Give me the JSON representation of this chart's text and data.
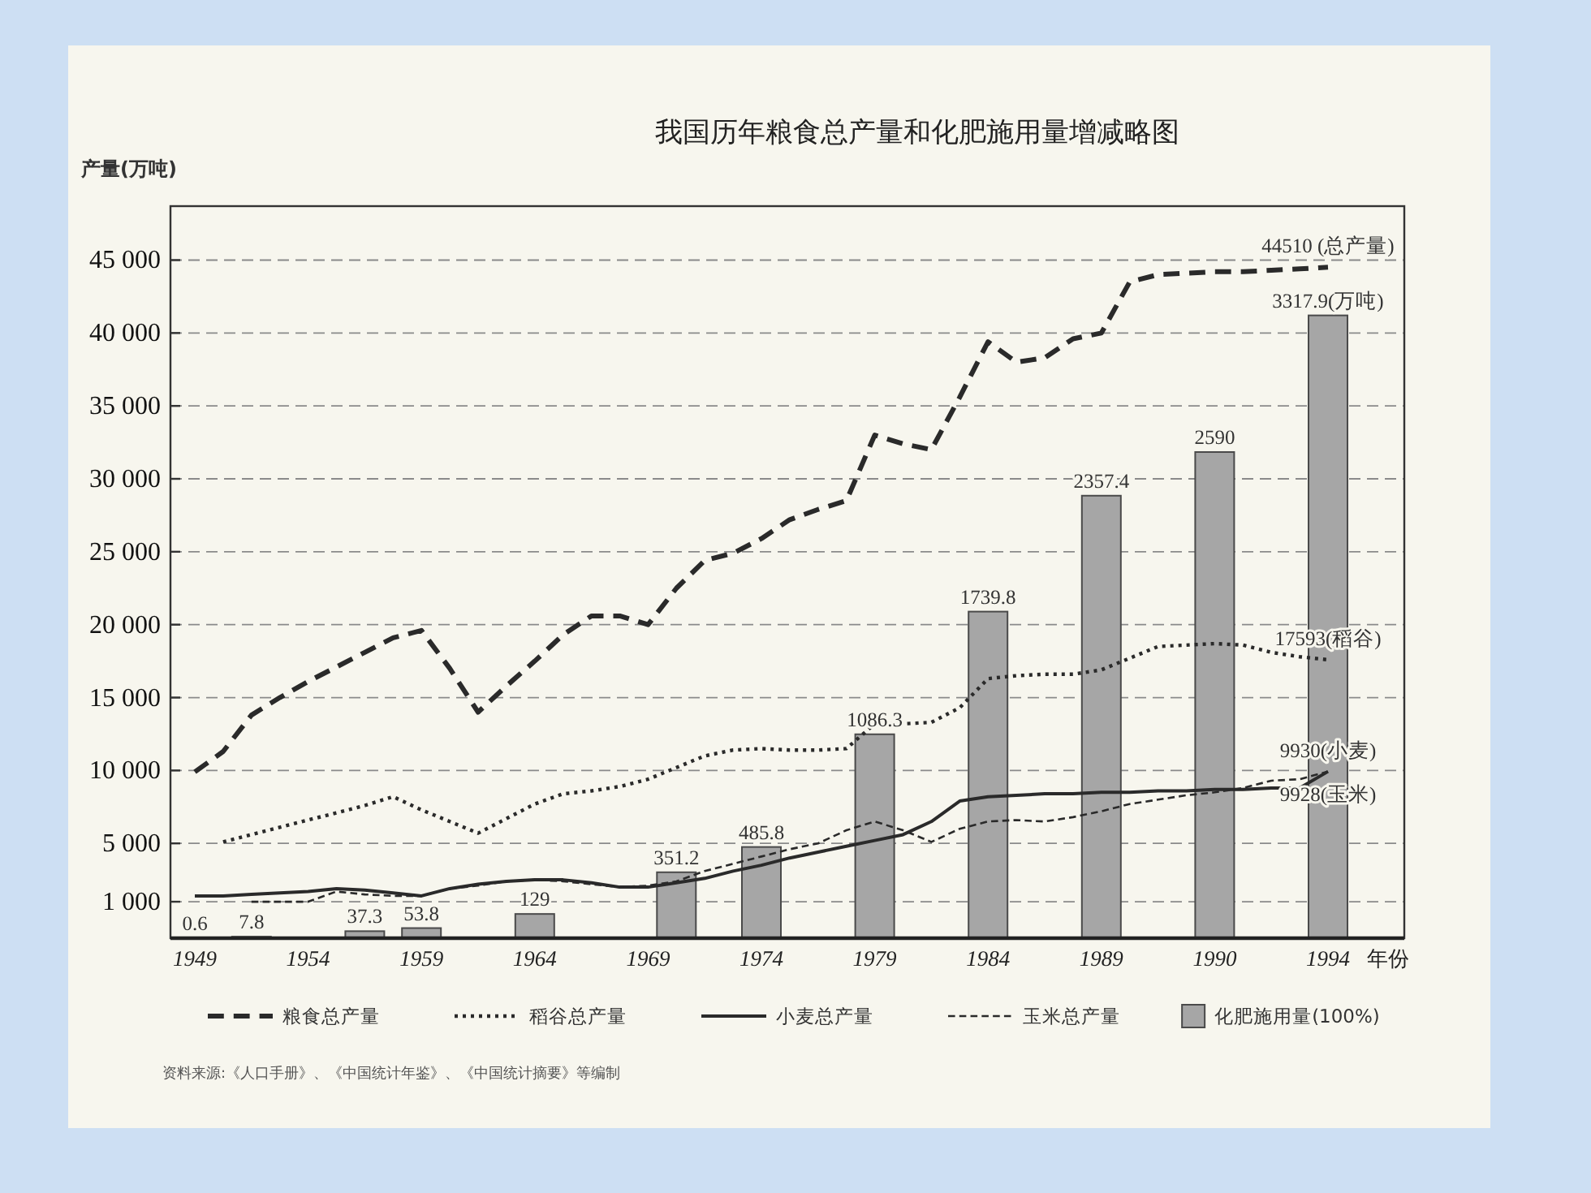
{
  "chart_data": {
    "type": "line",
    "title": "我国历年粮食总产量和化肥施用量增减略图",
    "ylabel": "产量(万吨)",
    "xlabel": "年份",
    "categories": [
      "1949",
      null,
      null,
      null,
      "1954",
      null,
      null,
      null,
      "1959",
      null,
      null,
      null,
      "1964",
      null,
      null,
      null,
      "1969",
      null,
      null,
      null,
      "1974",
      null,
      null,
      null,
      "1979",
      null,
      null,
      null,
      "1984",
      null,
      null,
      null,
      "1989",
      null,
      null,
      null,
      "1990",
      null,
      null,
      null,
      "1994"
    ],
    "ylim": [
      -1500,
      48700
    ],
    "yticks": [
      {
        "value": 1000,
        "label": "1 000"
      },
      {
        "value": 5000,
        "label": "5 000"
      },
      {
        "value": 10000,
        "label": "10 000"
      },
      {
        "value": 15000,
        "label": "15 000"
      },
      {
        "value": 20000,
        "label": "20 000"
      },
      {
        "value": 25000,
        "label": "25 000"
      },
      {
        "value": 30000,
        "label": "30 000"
      },
      {
        "value": 35000,
        "label": "35 000"
      },
      {
        "value": 40000,
        "label": "40 000"
      },
      {
        "value": 45000,
        "label": "45 000"
      }
    ],
    "y2lim": [
      0,
      3900
    ],
    "tick_labels": "xy",
    "grid": "y",
    "legend": "bottom",
    "series": [
      {
        "name": "粮食总产量",
        "line_style": "dashed",
        "color": "#2a2a2a",
        "values": [
          9900,
          11300,
          13800,
          15000,
          16100,
          17100,
          18100,
          19100,
          19600,
          17000,
          14000,
          15800,
          17500,
          19300,
          20600,
          20600,
          20000,
          22500,
          24400,
          24900,
          25900,
          27200,
          27900,
          28500,
          33000,
          32400,
          32000,
          35600,
          39400,
          38000,
          38300,
          39600,
          40000,
          43500,
          44000,
          44100,
          44200,
          44200,
          44300,
          44400,
          44510
        ],
        "value_labels": [
          null,
          null,
          null,
          null,
          null,
          null,
          null,
          null,
          null,
          null,
          null,
          null,
          null,
          null,
          null,
          null,
          null,
          null,
          null,
          null,
          null,
          null,
          null,
          null,
          null,
          null,
          null,
          null,
          null,
          null,
          null,
          null,
          null,
          null,
          null,
          null,
          null,
          null,
          null,
          null,
          "44510 (总产量)"
        ]
      },
      {
        "name": "稻谷总产量",
        "line_style": "dotted",
        "color": "#2a2a2a",
        "values": [
          null,
          5100,
          5600,
          6100,
          6600,
          7100,
          7600,
          8200,
          7300,
          6500,
          5700,
          6700,
          7700,
          8400,
          8600,
          8900,
          9400,
          10200,
          11000,
          11400,
          11500,
          11400,
          11400,
          11500,
          13200,
          13200,
          13300,
          14300,
          16300,
          16500,
          16600,
          16600,
          16900,
          17700,
          18500,
          18600,
          18700,
          18600,
          18100,
          17800,
          17593
        ],
        "value_labels": [
          null,
          null,
          null,
          null,
          null,
          null,
          null,
          null,
          null,
          null,
          null,
          null,
          null,
          null,
          null,
          null,
          null,
          null,
          null,
          null,
          null,
          null,
          null,
          null,
          null,
          null,
          null,
          null,
          null,
          null,
          null,
          null,
          null,
          null,
          null,
          null,
          null,
          null,
          null,
          null,
          "17593(稻谷)"
        ]
      },
      {
        "name": "小麦总产量",
        "line_style": "solid",
        "color": "#2a2a2a",
        "values": [
          1400,
          1400,
          1500,
          1600,
          1700,
          1900,
          1800,
          1600,
          1400,
          1900,
          2200,
          2400,
          2500,
          2500,
          2300,
          2000,
          2000,
          2300,
          2600,
          3100,
          3500,
          4000,
          4400,
          4800,
          5200,
          5600,
          6500,
          7900,
          8200,
          8300,
          8400,
          8400,
          8500,
          8500,
          8600,
          8600,
          8700,
          8700,
          8800,
          8800,
          9930
        ],
        "value_labels": [
          null,
          null,
          null,
          null,
          null,
          null,
          null,
          null,
          null,
          null,
          null,
          null,
          null,
          null,
          null,
          null,
          null,
          null,
          null,
          null,
          null,
          null,
          null,
          null,
          null,
          null,
          null,
          null,
          null,
          null,
          null,
          null,
          null,
          null,
          null,
          null,
          null,
          null,
          null,
          null,
          "9930(小麦)"
        ]
      },
      {
        "name": "玉米总产量",
        "line_style": "dashed",
        "color": "#2a2a2a",
        "values": [
          null,
          null,
          1000,
          1000,
          1000,
          1700,
          1500,
          1400,
          1400,
          1900,
          2100,
          2400,
          2500,
          2400,
          2200,
          2000,
          2100,
          2400,
          3100,
          3600,
          4100,
          4600,
          5000,
          5900,
          6500,
          5900,
          5100,
          6000,
          6500,
          6600,
          6500,
          6800,
          7200,
          7700,
          8000,
          8300,
          8500,
          8800,
          9300,
          9400,
          9928
        ],
        "value_labels": [
          null,
          null,
          null,
          null,
          null,
          null,
          null,
          null,
          null,
          null,
          null,
          null,
          null,
          null,
          null,
          null,
          null,
          null,
          null,
          null,
          null,
          null,
          null,
          null,
          null,
          null,
          null,
          null,
          null,
          null,
          null,
          null,
          null,
          null,
          null,
          null,
          null,
          null,
          null,
          null,
          "9928(玉米)"
        ]
      },
      {
        "name": "化肥施用量(100%)",
        "type": "bar",
        "axis": "y2",
        "color": "#a6a6a6",
        "values": [
          0.6,
          null,
          7.8,
          null,
          null,
          null,
          37.3,
          null,
          53.8,
          null,
          null,
          null,
          129,
          null,
          null,
          null,
          null,
          351.2,
          null,
          null,
          485.8,
          null,
          null,
          null,
          1086.3,
          null,
          null,
          null,
          1739.8,
          null,
          null,
          null,
          2357.4,
          null,
          null,
          null,
          2590,
          null,
          null,
          null,
          3317.9
        ],
        "value_labels": [
          "0.6",
          null,
          "7.8",
          null,
          null,
          null,
          "37.3",
          null,
          "53.8",
          null,
          null,
          null,
          "129",
          null,
          null,
          null,
          null,
          "351.2",
          null,
          null,
          "485.8",
          null,
          null,
          null,
          "1086.3",
          null,
          null,
          null,
          "1739.8",
          null,
          null,
          null,
          "2357.4",
          null,
          null,
          null,
          "2590",
          null,
          null,
          null,
          "3317.9(万吨)"
        ]
      }
    ],
    "annotations": [
      "资料来源:《人口手册》、《中国统计年鉴》、《中国统计摘要》等编制"
    ]
  }
}
